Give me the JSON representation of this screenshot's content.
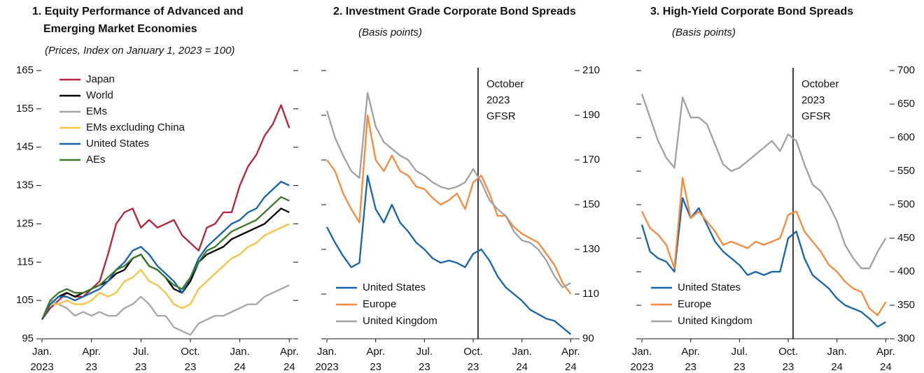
{
  "chart_data": [
    {
      "type": "line",
      "title": "1. Equity Performance of Advanced and Emerging Market Economies",
      "subtitle": "(Prices, Index on January 1, 2023 = 100)",
      "yaxis_side": "left",
      "legend": "upper left",
      "x": [
        0,
        0.5,
        1,
        1.5,
        2,
        2.5,
        3,
        3.5,
        4,
        4.5,
        5,
        5.5,
        6,
        6.5,
        7,
        7.5,
        8,
        8.5,
        9,
        9.5,
        10,
        10.5,
        11,
        11.5,
        12,
        12.5,
        13,
        13.5,
        14,
        14.5,
        15
      ],
      "xlim": [
        0,
        15.2
      ],
      "xticks": [
        {
          "value": 0,
          "label": "Jan. 2023"
        },
        {
          "value": 3,
          "label": "Apr. 23"
        },
        {
          "value": 6,
          "label": "Jul. 23"
        },
        {
          "value": 9,
          "label": "Oct. 23"
        },
        {
          "value": 12,
          "label": "Jan. 24"
        },
        {
          "value": 15,
          "label": "Apr. 24"
        }
      ],
      "ylim": [
        95,
        165
      ],
      "yticks": [
        95,
        105,
        115,
        125,
        135,
        145,
        155,
        165
      ],
      "series": [
        {
          "name": "Japan",
          "color": "#b5223a",
          "values": [
            100,
            103,
            105,
            107,
            106,
            106,
            108,
            110,
            117,
            125,
            128,
            129,
            124,
            126,
            124,
            125,
            126,
            122,
            120,
            118,
            124,
            125,
            128,
            128,
            135,
            140,
            143,
            148,
            151,
            156,
            150
          ]
        },
        {
          "name": "World",
          "color": "#000000",
          "values": [
            100,
            104,
            106,
            107,
            106,
            107,
            108,
            109,
            110,
            112,
            113,
            116,
            117,
            114,
            113,
            111,
            108,
            107,
            110,
            115,
            117,
            118,
            119,
            121,
            122,
            123,
            124,
            125,
            127,
            129,
            128
          ]
        },
        {
          "name": "EMs",
          "color": "#a6a6a6",
          "values": [
            100,
            105,
            104,
            103,
            101,
            102,
            101,
            102,
            101,
            101,
            103,
            104,
            106,
            104,
            101,
            101,
            98,
            97,
            96,
            99,
            100,
            101,
            101,
            102,
            103,
            104,
            104,
            106,
            107,
            108,
            109
          ]
        },
        {
          "name": "EMs excluding China",
          "color": "#f5c342",
          "values": [
            100,
            104,
            104,
            105,
            104,
            104,
            105,
            107,
            106,
            107,
            110,
            111,
            113,
            110,
            109,
            107,
            104,
            103,
            104,
            108,
            110,
            112,
            114,
            116,
            117,
            119,
            120,
            122,
            123,
            124,
            125
          ]
        },
        {
          "name": "United States",
          "color": "#1763a8",
          "values": [
            100,
            104,
            106,
            106,
            105,
            106,
            107,
            108,
            110,
            113,
            115,
            118,
            119,
            117,
            114,
            112,
            110,
            107,
            111,
            116,
            119,
            121,
            123,
            125,
            126,
            128,
            129,
            132,
            134,
            136,
            135
          ]
        },
        {
          "name": "AEs",
          "color": "#3b7a2a",
          "values": [
            100,
            105,
            107,
            108,
            107,
            107,
            108,
            109,
            111,
            113,
            114,
            116,
            117,
            114,
            113,
            111,
            109,
            108,
            111,
            115,
            118,
            119,
            121,
            123,
            124,
            125,
            126,
            128,
            130,
            132,
            131
          ]
        }
      ]
    },
    {
      "type": "line",
      "title": "2. Investment Grade Corporate Bond Spreads",
      "subtitle": "(Basis points)",
      "yaxis_side": "right",
      "legend": "lower left",
      "x": [
        0,
        0.5,
        1,
        1.5,
        2,
        2.5,
        3,
        3.5,
        4,
        4.5,
        5,
        5.5,
        6,
        6.5,
        7,
        7.5,
        8,
        8.5,
        9,
        9.5,
        10,
        10.5,
        11,
        11.5,
        12,
        12.5,
        13,
        13.5,
        14,
        14.5,
        15
      ],
      "xlim": [
        0,
        15.2
      ],
      "xticks": [
        {
          "value": 0,
          "label": "Jan. 2023"
        },
        {
          "value": 3,
          "label": "Apr. 23"
        },
        {
          "value": 6,
          "label": "Jul. 23"
        },
        {
          "value": 9,
          "label": "Oct. 23"
        },
        {
          "value": 12,
          "label": "Jan. 24"
        },
        {
          "value": 15,
          "label": "Apr. 24"
        }
      ],
      "ylim": [
        90,
        210
      ],
      "yticks": [
        90,
        110,
        130,
        150,
        170,
        190,
        210
      ],
      "vline": {
        "x": 9.3,
        "label": "October 2023 GFSR"
      },
      "series": [
        {
          "name": "United States",
          "color": "#1763a8",
          "values": [
            140,
            133,
            127,
            122,
            124,
            163,
            148,
            142,
            150,
            142,
            138,
            133,
            130,
            126,
            124,
            125,
            124,
            122,
            128,
            130,
            125,
            118,
            113,
            110,
            107,
            103,
            101,
            99,
            98,
            95,
            92
          ]
        },
        {
          "name": "Europe",
          "color": "#f58a3c",
          "values": [
            170,
            165,
            155,
            148,
            142,
            190,
            170,
            165,
            172,
            165,
            163,
            158,
            157,
            153,
            150,
            152,
            155,
            148,
            160,
            163,
            155,
            145,
            145,
            140,
            137,
            135,
            133,
            128,
            123,
            115,
            110
          ]
        },
        {
          "name": "United Kingdom",
          "color": "#a0a0a0",
          "values": [
            192,
            180,
            172,
            165,
            162,
            200,
            185,
            178,
            175,
            172,
            170,
            165,
            163,
            160,
            158,
            157,
            158,
            160,
            166,
            160,
            152,
            148,
            145,
            138,
            134,
            133,
            130,
            125,
            118,
            113,
            115
          ]
        }
      ]
    },
    {
      "type": "line",
      "title": "3. High-Yield Corporate Bond Spreads",
      "subtitle": "(Basis points)",
      "yaxis_side": "right",
      "legend": "lower left",
      "x": [
        0,
        0.5,
        1,
        1.5,
        2,
        2.5,
        3,
        3.5,
        4,
        4.5,
        5,
        5.5,
        6,
        6.5,
        7,
        7.5,
        8,
        8.5,
        9,
        9.5,
        10,
        10.5,
        11,
        11.5,
        12,
        12.5,
        13,
        13.5,
        14,
        14.5,
        15
      ],
      "xlim": [
        0,
        15.2
      ],
      "xticks": [
        {
          "value": 0,
          "label": "Jan. 2023"
        },
        {
          "value": 3,
          "label": "Apr. 23"
        },
        {
          "value": 6,
          "label": "Jul. 23"
        },
        {
          "value": 9,
          "label": "Oct. 23"
        },
        {
          "value": 12,
          "label": "Jan. 24"
        },
        {
          "value": 15,
          "label": "Apr. 24"
        }
      ],
      "ylim": [
        300,
        700
      ],
      "yticks": [
        300,
        350,
        400,
        450,
        500,
        550,
        600,
        650,
        700
      ],
      "vline": {
        "x": 9.3,
        "label": "October 2023 GFSR"
      },
      "series": [
        {
          "name": "United States",
          "color": "#1763a8",
          "values": [
            470,
            430,
            420,
            415,
            400,
            510,
            480,
            495,
            470,
            445,
            430,
            420,
            410,
            395,
            400,
            395,
            400,
            400,
            450,
            460,
            420,
            395,
            385,
            375,
            360,
            350,
            345,
            340,
            330,
            318,
            325
          ]
        },
        {
          "name": "Europe",
          "color": "#f58a3c",
          "values": [
            490,
            465,
            455,
            440,
            405,
            540,
            480,
            490,
            475,
            460,
            440,
            445,
            440,
            435,
            445,
            440,
            445,
            450,
            485,
            490,
            460,
            445,
            430,
            410,
            400,
            385,
            375,
            370,
            345,
            335,
            355
          ]
        },
        {
          "name": "United Kingdom",
          "color": "#a0a0a0",
          "values": [
            665,
            630,
            595,
            570,
            555,
            660,
            630,
            630,
            620,
            590,
            560,
            550,
            555,
            565,
            575,
            585,
            595,
            580,
            605,
            595,
            560,
            530,
            520,
            500,
            475,
            440,
            420,
            405,
            405,
            430,
            450
          ]
        }
      ]
    }
  ]
}
